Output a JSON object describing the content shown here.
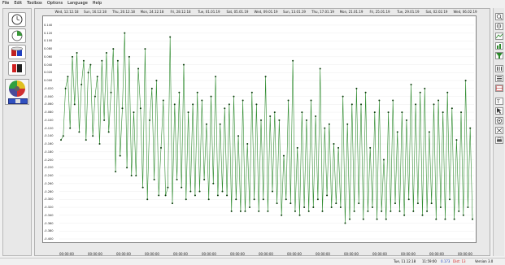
{
  "menu": [
    "File",
    "Edit",
    "Toolbox",
    "Options",
    "Language",
    "Help"
  ],
  "status": {
    "datetime": "Tue, 11.12.18",
    "time": "11:59:00",
    "v1": "0.173",
    "v2": "Dist: 13",
    "version": "Version 3.0"
  },
  "colors": {
    "series": "#2e8b2e",
    "marker": "#0a3d0a",
    "frame": "#808080"
  },
  "chart_data": {
    "type": "line",
    "title": "",
    "xlabel": "",
    "ylabel": "",
    "ylim": [
      -0.4,
      0.15
    ],
    "y_ticks": [
      "0.140",
      "0.120",
      "0.100",
      "0.080",
      "0.060",
      "0.040",
      "0.020",
      "0.000",
      "-0.020",
      "-0.040",
      "-0.060",
      "-0.080",
      "-0.100",
      "-0.120",
      "-0.140",
      "-0.160",
      "-0.180",
      "-0.200",
      "-0.220",
      "-0.240",
      "-0.260",
      "-0.280",
      "-0.300",
      "-0.320",
      "-0.340",
      "-0.360",
      "-0.380",
      "-0.400"
    ],
    "date_labels": [
      "Wed, 12.12.18",
      "Sun, 16.12.18",
      "Thu, 20.12.18",
      "Mon, 24.12.18",
      "Fri, 28.12.18",
      "Tue, 01.01.19",
      "Sat, 05.01.19",
      "Wed, 09.01.19",
      "Sun, 13.01.19",
      "Thu, 17.01.19",
      "Mon, 21.01.19",
      "Fri, 25.01.19",
      "Tue, 29.01.19",
      "Sat, 02.02.19",
      "Wed, 06.02.19"
    ],
    "time_labels": [
      "00:00:00",
      "00:00:00",
      "00:00:00",
      "00:00:00",
      "00:00:00",
      "00:00:00",
      "00:00:00",
      "00:00:00",
      "00:00:00",
      "00:00:00",
      "00:00:00",
      "00:00:00",
      "00:00:00",
      "00:00:00",
      "00:00:00"
    ],
    "series": [
      {
        "values": [
          -0.15,
          -0.14,
          -0.02,
          0.01,
          -0.12,
          0.06,
          -0.06,
          0.07,
          -0.13,
          -0.01,
          0.05,
          -0.15,
          0.02,
          0.04,
          -0.14,
          -0.04,
          0.01,
          -0.16,
          0.05,
          -0.1,
          0.07,
          -0.13,
          -0.03,
          0.08,
          -0.23,
          0.05,
          -0.19,
          -0.07,
          0.12,
          -0.22,
          0.06,
          -0.24,
          -0.08,
          -0.24,
          0.03,
          -0.07,
          -0.27,
          0.08,
          -0.3,
          -0.1,
          -0.02,
          -0.25,
          0.0,
          -0.29,
          -0.17,
          -0.05,
          -0.29,
          -0.27,
          0.11,
          -0.31,
          -0.06,
          -0.25,
          -0.03,
          -0.27,
          0.04,
          -0.3,
          -0.08,
          -0.28,
          -0.06,
          -0.29,
          -0.03,
          -0.28,
          -0.05,
          -0.25,
          -0.11,
          -0.3,
          -0.04,
          -0.26,
          0.01,
          -0.29,
          -0.11,
          -0.28,
          -0.07,
          -0.29,
          -0.06,
          -0.33,
          -0.04,
          -0.3,
          -0.14,
          -0.33,
          -0.05,
          -0.33,
          -0.16,
          -0.32,
          -0.03,
          -0.3,
          -0.06,
          -0.33,
          -0.1,
          -0.3,
          0.01,
          -0.33,
          -0.09,
          -0.28,
          -0.08,
          -0.31,
          -0.1,
          -0.34,
          -0.19,
          -0.3,
          -0.05,
          -0.31,
          0.05,
          -0.33,
          -0.17,
          -0.34,
          -0.08,
          -0.32,
          -0.1,
          -0.33,
          -0.05,
          -0.32,
          -0.09,
          -0.3,
          0.03,
          -0.33,
          -0.12,
          -0.29,
          -0.11,
          -0.32,
          -0.16,
          -0.31,
          -0.17,
          -0.32,
          -0.04,
          -0.36,
          -0.11,
          -0.35,
          -0.06,
          -0.33,
          -0.02,
          -0.31,
          -0.06,
          -0.35,
          -0.03,
          -0.33,
          -0.17,
          -0.32,
          -0.08,
          -0.35,
          -0.05,
          -0.33,
          -0.2,
          -0.35,
          -0.08,
          -0.33,
          -0.05,
          -0.31,
          -0.13,
          -0.33,
          -0.08,
          -0.34,
          -0.1,
          -0.3,
          -0.01,
          -0.33,
          -0.06,
          -0.31,
          -0.03,
          -0.34,
          -0.02,
          -0.33,
          -0.13,
          -0.31,
          -0.06,
          -0.35,
          -0.05,
          -0.32,
          -0.08,
          -0.35,
          -0.03,
          -0.3,
          -0.07,
          -0.35,
          -0.15,
          -0.33,
          -0.08,
          -0.34,
          0.0,
          -0.32,
          -0.12,
          -0.35
        ]
      }
    ]
  }
}
